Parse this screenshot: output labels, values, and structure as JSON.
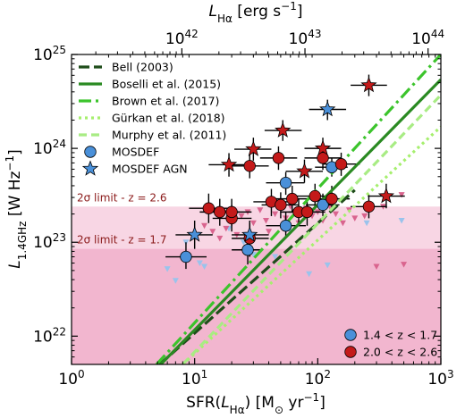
{
  "chart_data": {
    "type": "scatter",
    "title": "",
    "xlabel": "SFR(L_Hα) [M_⊙ yr^-1]",
    "ylabel": "L_1.4GHz [W Hz^-1]",
    "top_xlabel": "L_Hα [erg s^-1]",
    "x_scale": "log",
    "y_scale": "log",
    "xlim": [
      1,
      1000
    ],
    "ylim": [
      5e+21,
      1e+25
    ],
    "top_xlim_erg_s": [
      1.27e+41,
      1.27e+44
    ],
    "x_ticks": [
      {
        "value": 1,
        "label": "10^0"
      },
      {
        "value": 10,
        "label": "10^1"
      },
      {
        "value": 100,
        "label": "10^2"
      },
      {
        "value": 1000,
        "label": "10^3"
      }
    ],
    "y_ticks": [
      {
        "value": 1e+22,
        "label": "10^22"
      },
      {
        "value": 1e+23,
        "label": "10^23"
      },
      {
        "value": 1e+24,
        "label": "10^24"
      },
      {
        "value": 1e+25,
        "label": "10^25"
      }
    ],
    "top_ticks": [
      {
        "value_erg_s": 1e+42,
        "label": "10^42"
      },
      {
        "value_erg_s": 1e+43,
        "label": "10^43"
      },
      {
        "value_erg_s": 1e+44,
        "label": "10^44"
      }
    ],
    "sigma_limits": [
      {
        "label": "2σ limit - z = 2.6",
        "y": 2.4e+23,
        "color": "#f8d6e4"
      },
      {
        "label": "2σ limit - z = 1.7",
        "y": 8.5e+22,
        "color": "#f2b6cf"
      }
    ],
    "relations": [
      {
        "name": "Bell (2003)",
        "style": "longdash",
        "color": "#1f4d1a",
        "x": [
          5.2,
          200
        ],
        "y": [
          5e+21,
          3.6e+23
        ]
      },
      {
        "name": "Boselli et al. (2015)",
        "style": "solid",
        "color": "#2a8a22",
        "x": [
          5.3,
          1000
        ],
        "y": [
          5e+21,
          5.4e+24
        ]
      },
      {
        "name": "Brown et al. (2017)",
        "style": "dashdot",
        "color": "#3cc42c",
        "x": [
          4.9,
          1000
        ],
        "y": [
          5e+21,
          1e+25
        ]
      },
      {
        "name": "Gürkan et al. (2018)",
        "style": "dotted",
        "color": "#a6ef6e",
        "x": [
          8.0,
          1000
        ],
        "y": [
          5e+21,
          1.7e+24
        ]
      },
      {
        "name": "Murphy et al. (2011)",
        "style": "dashed",
        "color": "#a8ec84",
        "x": [
          8.0,
          1000
        ],
        "y": [
          5e+21,
          3.7e+24
        ]
      }
    ],
    "series": [
      {
        "name": "1.4 < z < 1.7",
        "marker": "circle",
        "color": "#4a90d9",
        "points": [
          {
            "x": 8.5,
            "y": 7e+22,
            "xerr": [
              5.8,
              12.5
            ],
            "yerr": [
              5.2e+22,
              1e+23
            ]
          },
          {
            "x": 27,
            "y": 8.3e+22,
            "xerr": [
              20,
              35
            ],
            "yerr": [
              5.8e+22,
              1.2e+23
            ]
          },
          {
            "x": 55,
            "y": 1.5e+23,
            "xerr": [
              38,
              80
            ],
            "yerr": [
              1.1e+23,
              2.1e+23
            ]
          },
          {
            "x": 55,
            "y": 4.3e+23,
            "xerr": [
              38,
              78
            ],
            "yerr": [
              3.2e+23,
              5.6e+23
            ]
          },
          {
            "x": 110,
            "y": 2.5e+23,
            "xerr": [
              80,
              150
            ],
            "yerr": [
              1.9e+23,
              3.3e+23
            ]
          },
          {
            "x": 130,
            "y": 6.3e+23,
            "xerr": [
              95,
              175
            ],
            "yerr": [
              5e+23,
              7.9e+23
            ]
          }
        ]
      },
      {
        "name": "2.0 < z < 2.6",
        "marker": "circle",
        "color": "#c41a1a",
        "points": [
          {
            "x": 13,
            "y": 2.3e+23,
            "xerr": [
              9,
              19
            ],
            "yerr": [
              1.6e+23,
              3.3e+23
            ]
          },
          {
            "x": 16,
            "y": 2.1e+23,
            "xerr": [
              11,
              23
            ],
            "yerr": [
              1.5e+23,
              2.9e+23
            ]
          },
          {
            "x": 20,
            "y": 1.8e+23,
            "xerr": [
              14,
              29
            ],
            "yerr": [
              1.3e+23,
              2.5e+23
            ]
          },
          {
            "x": 20,
            "y": 2.1e+23,
            "xerr": [
              14,
              29
            ],
            "yerr": [
              1.5e+23,
              2.9e+23
            ]
          },
          {
            "x": 28,
            "y": 1.1e+23,
            "xerr": [
              20,
              40
            ],
            "yerr": [
              7e+22,
              1.6e+23
            ]
          },
          {
            "x": 28,
            "y": 6.5e+23,
            "xerr": [
              20,
              40
            ],
            "yerr": [
              4.8e+23,
              8.6e+23
            ]
          },
          {
            "x": 42,
            "y": 2.7e+23,
            "xerr": [
              30,
              59
            ],
            "yerr": [
              1.9e+23,
              3.7e+23
            ]
          },
          {
            "x": 48,
            "y": 7.9e+23,
            "xerr": [
              34,
              68
            ],
            "yerr": [
              5.9e+23,
              1.05e+24
            ]
          },
          {
            "x": 50,
            "y": 2.5e+23,
            "xerr": [
              35,
              70
            ],
            "yerr": [
              1.8e+23,
              3.4e+23
            ]
          },
          {
            "x": 62,
            "y": 2.9e+23,
            "xerr": [
              44,
              88
            ],
            "yerr": [
              2.1e+23,
              4e+23
            ]
          },
          {
            "x": 70,
            "y": 2.1e+23,
            "xerr": [
              50,
              98
            ],
            "yerr": [
              1.5e+23,
              2.9e+23
            ]
          },
          {
            "x": 82,
            "y": 2.1e+23,
            "xerr": [
              58,
              115
            ],
            "yerr": [
              1.5e+23,
              2.9e+23
            ]
          },
          {
            "x": 95,
            "y": 3.1e+23,
            "xerr": [
              68,
              135
            ],
            "yerr": [
              2.3e+23,
              4.2e+23
            ]
          },
          {
            "x": 110,
            "y": 7.9e+23,
            "xerr": [
              78,
              155
            ],
            "yerr": [
              5.9e+23,
              1.05e+24
            ]
          },
          {
            "x": 130,
            "y": 2.9e+23,
            "xerr": [
              92,
              182
            ],
            "yerr": [
              2.1e+23,
              4e+23
            ]
          },
          {
            "x": 155,
            "y": 6.8e+23,
            "xerr": [
              110,
              220
            ],
            "yerr": [
              5.1e+23,
              9e+23
            ]
          },
          {
            "x": 260,
            "y": 2.4e+23,
            "xerr": [
              185,
              365
            ],
            "yerr": [
              1.8e+23,
              3.2e+23
            ]
          }
        ]
      },
      {
        "name": "MOSDEF AGN (1.4 < z < 1.7)",
        "marker": "star",
        "color": "#4a90d9",
        "points": [
          {
            "x": 10,
            "y": 1.2e+23,
            "xerr": [
              7,
              14
            ],
            "yerr": [
              8.5e+22,
              1.7e+23
            ]
          },
          {
            "x": 28,
            "y": 1.2e+23,
            "xerr": [
              20,
              40
            ],
            "yerr": [
              8.5e+22,
              1.7e+23
            ]
          },
          {
            "x": 120,
            "y": 2.6e+24,
            "xerr": [
              85,
              170
            ],
            "yerr": [
              2e+24,
              3.3e+24
            ]
          }
        ]
      },
      {
        "name": "MOSDEF AGN (2.0 < z < 2.6)",
        "marker": "star",
        "color": "#c41a1a",
        "points": [
          {
            "x": 19,
            "y": 6.7e+23,
            "xerr": [
              13,
              27
            ],
            "yerr": [
              5e+23,
              8.9e+23
            ]
          },
          {
            "x": 30,
            "y": 9.8e+23,
            "xerr": [
              21,
              42
            ],
            "yerr": [
              7.4e+23,
              1.3e+24
            ]
          },
          {
            "x": 52,
            "y": 1.55e+24,
            "xerr": [
              37,
              74
            ],
            "yerr": [
              1.2e+24,
              2e+24
            ]
          },
          {
            "x": 78,
            "y": 5.7e+23,
            "xerr": [
              55,
              110
            ],
            "yerr": [
              4.3e+23,
              7.6e+23
            ]
          },
          {
            "x": 110,
            "y": 1e+24,
            "xerr": [
              78,
              155
            ],
            "yerr": [
              7.6e+23,
              1.3e+24
            ]
          },
          {
            "x": 260,
            "y": 4.7e+24,
            "xerr": [
              185,
              365
            ],
            "yerr": [
              3.6e+24,
              6.1e+24
            ]
          },
          {
            "x": 360,
            "y": 3.1e+23,
            "xerr": [
              255,
              510
            ],
            "yerr": [
              2.3e+23,
              4.2e+23
            ]
          }
        ]
      }
    ],
    "upper_limits": [
      {
        "name": "1.4 < z < 1.7 (2σ upper limit)",
        "color": "#9ac3ec",
        "x": [
          6,
          7,
          8.5,
          11,
          12,
          19,
          25,
          30,
          45,
          60,
          85,
          120,
          250,
          480
        ],
        "y": [
          5.2e+22,
          3.9e+22,
          1e+23,
          6e+22,
          5.5e+22,
          1.4e+23,
          1e+23,
          7.4e+22,
          7e+22,
          1.3e+23,
          4.6e+22,
          5.7e+22,
          1.6e+23,
          1.7e+23
        ]
      },
      {
        "name": "2.0 < z < 2.6 (2σ upper limit)",
        "color": "#d9648e",
        "x": [
          12,
          14,
          16,
          18,
          22,
          24,
          27,
          30,
          34,
          38,
          40,
          45,
          55,
          60,
          65,
          70,
          80,
          90,
          100,
          110,
          125,
          140,
          160,
          180,
          200,
          240,
          300,
          340,
          480,
          500
        ],
        "y": [
          1.5e+23,
          1.3e+23,
          1.1e+23,
          1.4e+23,
          1.2e+23,
          1.9e+23,
          2.1e+23,
          1.6e+23,
          2.2e+23,
          1.7e+23,
          1.3e+23,
          2e+23,
          1.8e+23,
          2.4e+23,
          2.1e+23,
          1.6e+23,
          2.3e+23,
          1.9e+23,
          2.1e+23,
          1.7e+23,
          2.4e+23,
          2e+23,
          1.6e+23,
          2.2e+23,
          1.8e+23,
          1.9e+23,
          5.5e+22,
          2.4e+23,
          3.2e+23,
          5.8e+22
        ]
      }
    ],
    "legend_top": [
      {
        "label": "Bell (2003)",
        "kind": "line",
        "style": "longdash",
        "color": "#1f4d1a"
      },
      {
        "label": "Boselli et al. (2015)",
        "kind": "line",
        "style": "solid",
        "color": "#2a8a22"
      },
      {
        "label": "Brown et al. (2017)",
        "kind": "line",
        "style": "dashdot",
        "color": "#3cc42c"
      },
      {
        "label": "Gürkan et al. (2018)",
        "kind": "line",
        "style": "dotted",
        "color": "#a6ef6e"
      },
      {
        "label": "Murphy et al. (2011)",
        "kind": "line",
        "style": "dashed",
        "color": "#a8ec84"
      },
      {
        "label": "MOSDEF",
        "kind": "circle",
        "color": "#4a90d9"
      },
      {
        "label": "MOSDEF AGN",
        "kind": "star",
        "color": "#4a90d9"
      }
    ],
    "legend_bottom": [
      {
        "label": "1.4 < z < 1.7",
        "kind": "circle",
        "color": "#4a90d9"
      },
      {
        "label": "2.0 < z < 2.6",
        "kind": "circle",
        "color": "#c41a1a"
      }
    ],
    "legend_placement": [
      "top-left",
      "bottom-right"
    ],
    "grid": false
  }
}
